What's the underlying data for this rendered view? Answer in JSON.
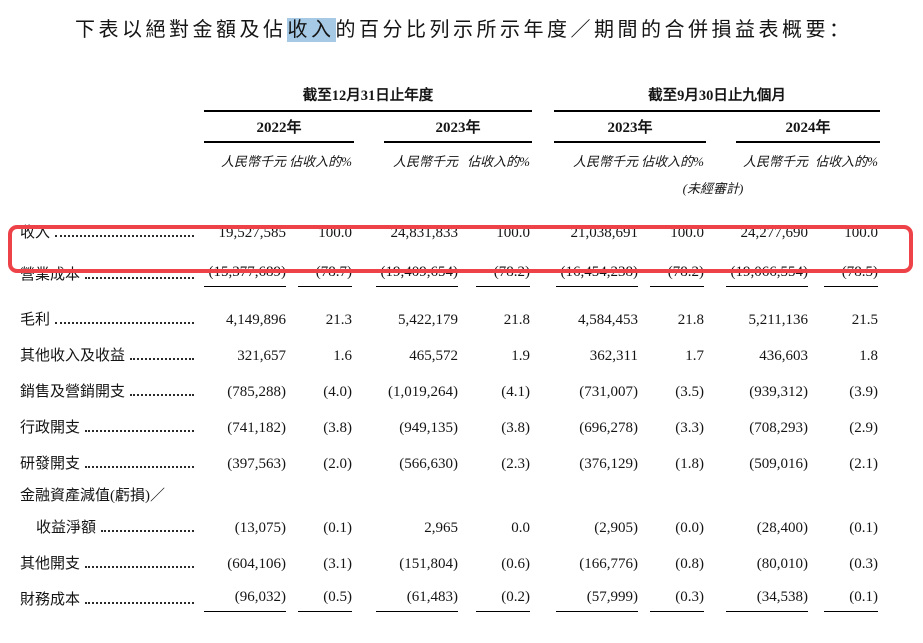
{
  "title": {
    "pre": "下表以絕對金額及佔",
    "highlight": "收入",
    "post": "的百分比列示所示年度／期間的合併損益表概要："
  },
  "colors": {
    "highlight_bg": "#a6c9e5",
    "annotation_box": "#ee4249",
    "text": "#141414"
  },
  "table": {
    "groups": [
      {
        "label": "截至12月31日止年度",
        "years": [
          "2022年",
          "2023年"
        ]
      },
      {
        "label": "截至9月30日止九個月",
        "years": [
          "2023年",
          "2024年"
        ]
      }
    ],
    "col_headers": {
      "amount": "人民幣千元",
      "pct": "佔收入的%"
    },
    "unaudited_note": "(未經審計)",
    "rows": [
      {
        "label": "收入",
        "leader": true,
        "bold": true,
        "boxed": true,
        "tall": true,
        "values": [
          "19,527,585",
          "100.0",
          "24,831,833",
          "100.0",
          "21,038,691",
          "100.0",
          "24,277,690",
          "100.0"
        ]
      },
      {
        "label": "營業成本",
        "leader": true,
        "rule": true,
        "tall": true,
        "values": [
          "(15,377,689)",
          "(78.7)",
          "(19,409,654)",
          "(78.2)",
          "(16,454,238)",
          "(78.2)",
          "(19,066,554)",
          "(78.5)"
        ]
      },
      {
        "label": "毛利",
        "leader": true,
        "bold": true,
        "space_before": true,
        "values": [
          "4,149,896",
          "21.3",
          "5,422,179",
          "21.8",
          "4,584,453",
          "21.8",
          "5,211,136",
          "21.5"
        ]
      },
      {
        "label": "其他收入及收益",
        "leader": true,
        "values": [
          "321,657",
          "1.6",
          "465,572",
          "1.9",
          "362,311",
          "1.7",
          "436,603",
          "1.8"
        ]
      },
      {
        "label": "銷售及營銷開支",
        "leader": true,
        "values": [
          "(785,288)",
          "(4.0)",
          "(1,019,264)",
          "(4.1)",
          "(731,007)",
          "(3.5)",
          "(939,312)",
          "(3.9)"
        ]
      },
      {
        "label": "行政開支",
        "leader": true,
        "values": [
          "(741,182)",
          "(3.8)",
          "(949,135)",
          "(3.8)",
          "(696,278)",
          "(3.3)",
          "(708,293)",
          "(2.9)"
        ]
      },
      {
        "label": "研發開支",
        "leader": true,
        "values": [
          "(397,563)",
          "(2.0)",
          "(566,630)",
          "(2.3)",
          "(376,129)",
          "(1.8)",
          "(509,016)",
          "(2.1)"
        ]
      },
      {
        "label": "金融資產減值(虧損)／",
        "leader": false,
        "short": true,
        "values": null
      },
      {
        "label": "收益淨額",
        "leader": true,
        "indent": true,
        "values": [
          "(13,075)",
          "(0.1)",
          "2,965",
          "0.0",
          "(2,905)",
          "(0.0)",
          "(28,400)",
          "(0.1)"
        ]
      },
      {
        "label": "其他開支",
        "leader": true,
        "values": [
          "(604,106)",
          "(3.1)",
          "(151,804)",
          "(0.6)",
          "(166,776)",
          "(0.8)",
          "(80,010)",
          "(0.3)"
        ]
      },
      {
        "label": "財務成本",
        "leader": true,
        "rule": true,
        "values": [
          "(96,032)",
          "(0.5)",
          "(61,483)",
          "(0.2)",
          "(57,999)",
          "(0.3)",
          "(34,538)",
          "(0.1)"
        ]
      }
    ]
  }
}
